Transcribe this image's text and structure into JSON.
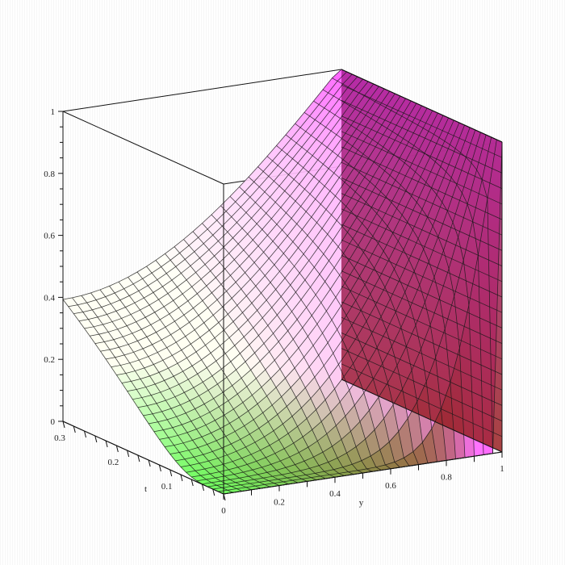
{
  "chart_data": {
    "type": "surface3d",
    "title": "",
    "axes": {
      "y": {
        "label": "y",
        "range": [
          0,
          1
        ],
        "ticks": [
          {
            "value": 0,
            "label": "0"
          },
          {
            "value": 0.2,
            "label": "0.2"
          },
          {
            "value": 0.4,
            "label": "0.4"
          },
          {
            "value": 0.6,
            "label": "0.6"
          },
          {
            "value": 0.8,
            "label": "0.8"
          },
          {
            "value": 1,
            "label": "1"
          }
        ]
      },
      "t": {
        "label": "t",
        "range": [
          0,
          0.3
        ],
        "ticks": [
          {
            "value": 0.1,
            "label": "0.1"
          },
          {
            "value": 0.2,
            "label": "0.2"
          },
          {
            "value": 0.3,
            "label": "0.3"
          }
        ]
      },
      "z": {
        "label": "",
        "range": [
          0,
          1
        ],
        "ticks": [
          {
            "value": 0,
            "label": "0"
          },
          {
            "value": 0.2,
            "label": "0.2"
          },
          {
            "value": 0.4,
            "label": "0.4"
          },
          {
            "value": 0.6,
            "label": "0.6"
          },
          {
            "value": 0.8,
            "label": "0.8"
          },
          {
            "value": 1,
            "label": "1"
          }
        ]
      }
    },
    "surface": {
      "y_count": 31,
      "t_count": 31,
      "boundary": {
        "at_y_1": 1,
        "at_t_0_interior": 0
      },
      "colors": [
        "#66ff55",
        "#fffff0",
        "#ff55ff",
        "#aa2299",
        "#992020"
      ]
    },
    "box": true,
    "grid": "mesh"
  }
}
